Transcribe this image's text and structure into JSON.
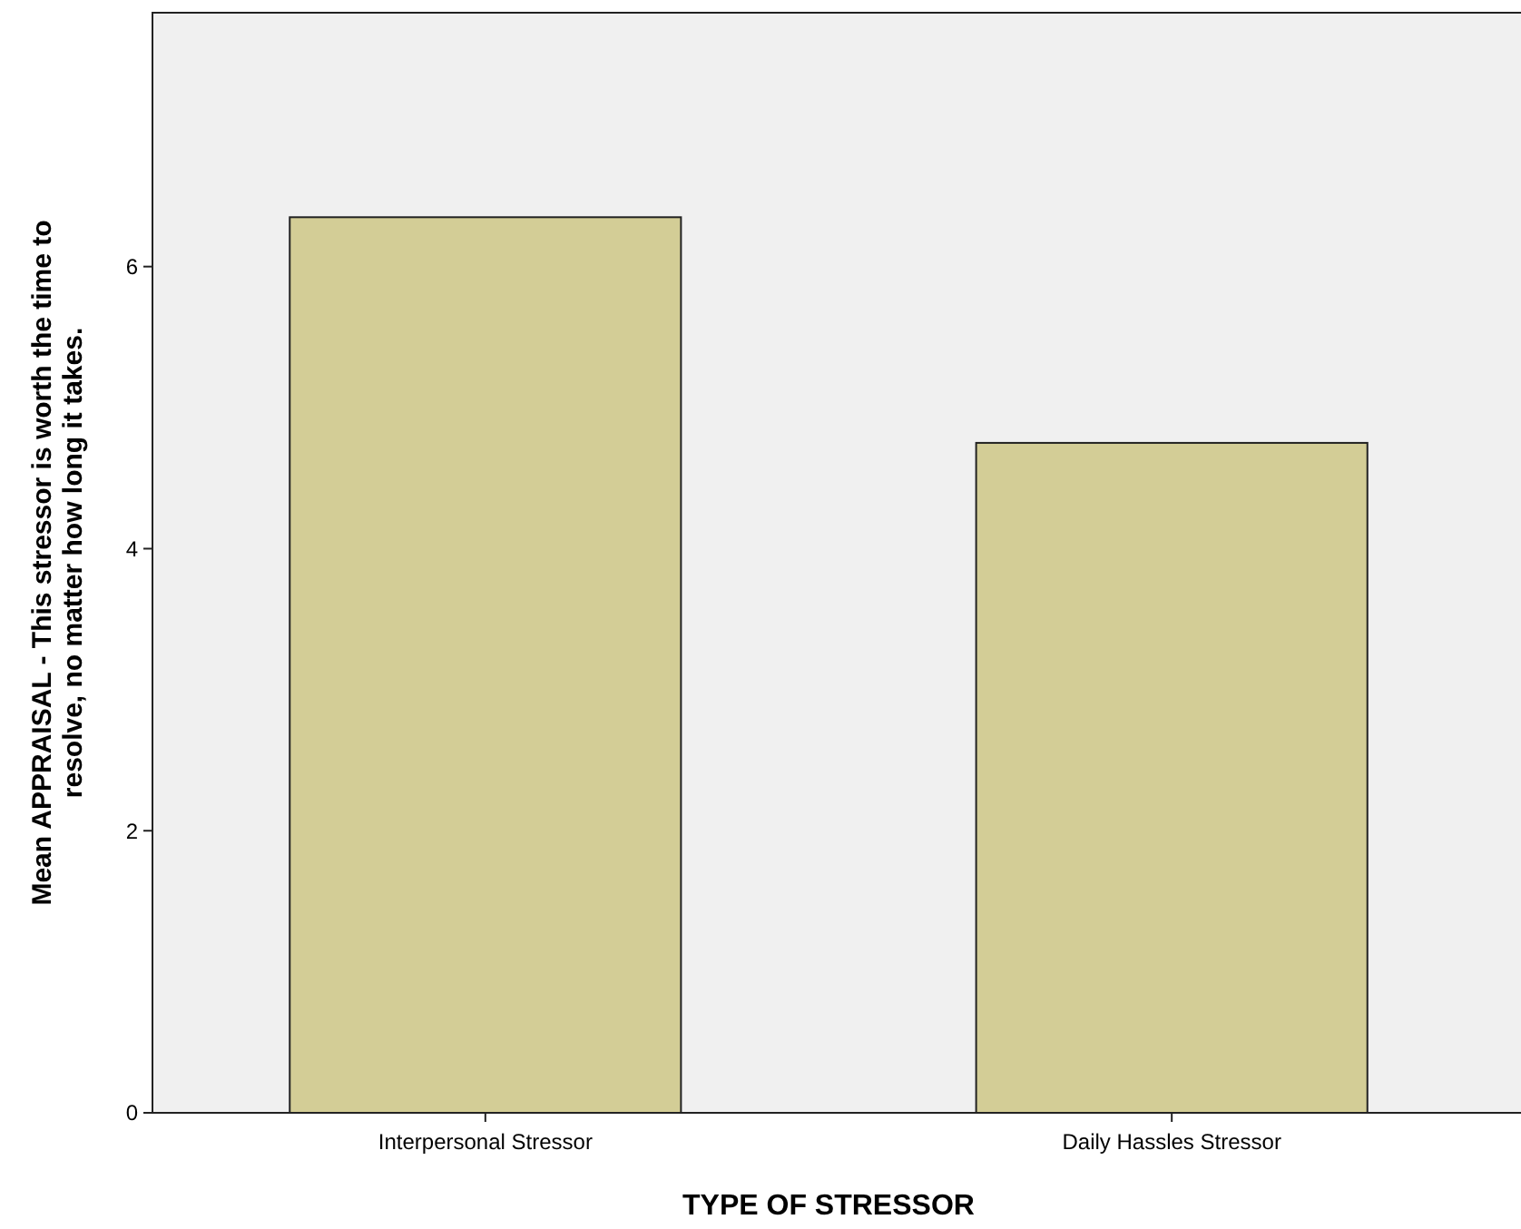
{
  "chart_data": {
    "type": "bar",
    "xlabel": "TYPE OF STRESSOR",
    "ylabel": "Mean APPRAISAL - This stressor is worth the time to\nresolve, no matter how long it takes.",
    "categories": [
      "Interpersonal Stressor",
      "Daily Hassles Stressor"
    ],
    "values": [
      6.35,
      4.75
    ],
    "color": "#d3cd96",
    "ylim": [
      0,
      7.8
    ],
    "yticks": [
      0,
      2,
      4,
      6
    ],
    "grid": false
  }
}
